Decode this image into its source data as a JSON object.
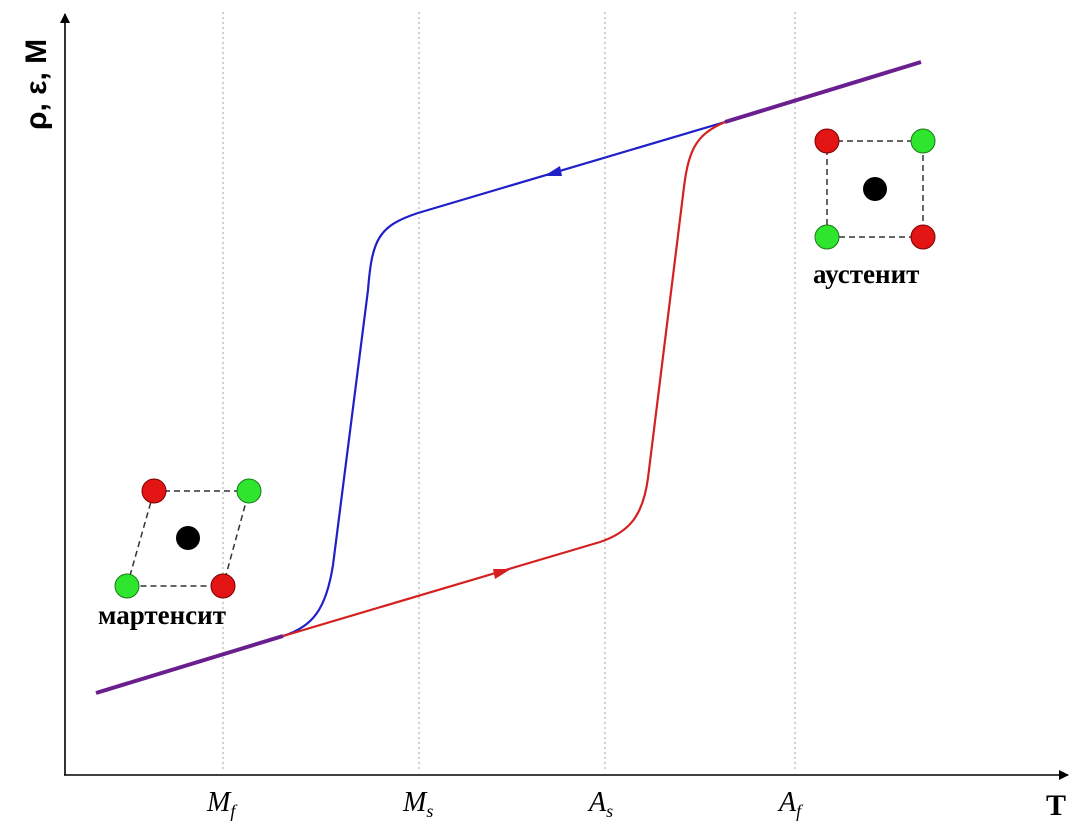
{
  "axes": {
    "y_label": "ρ, ε, M",
    "x_label": "T"
  },
  "temperatures": [
    {
      "symbol": "M",
      "sub": "f"
    },
    {
      "symbol": "M",
      "sub": "s"
    },
    {
      "symbol": "A",
      "sub": "s"
    },
    {
      "symbol": "A",
      "sub": "f"
    }
  ],
  "phases": {
    "martensite": "мартенсит",
    "austenite": "аустенит"
  },
  "colors": {
    "heating": "#d42020",
    "cooling": "#2020c8",
    "common": "#6a1f8e",
    "atom_red": "#e31414",
    "atom_green": "#2ee62e",
    "atom_center": "#000000",
    "guide": "#b8b8b8"
  }
}
